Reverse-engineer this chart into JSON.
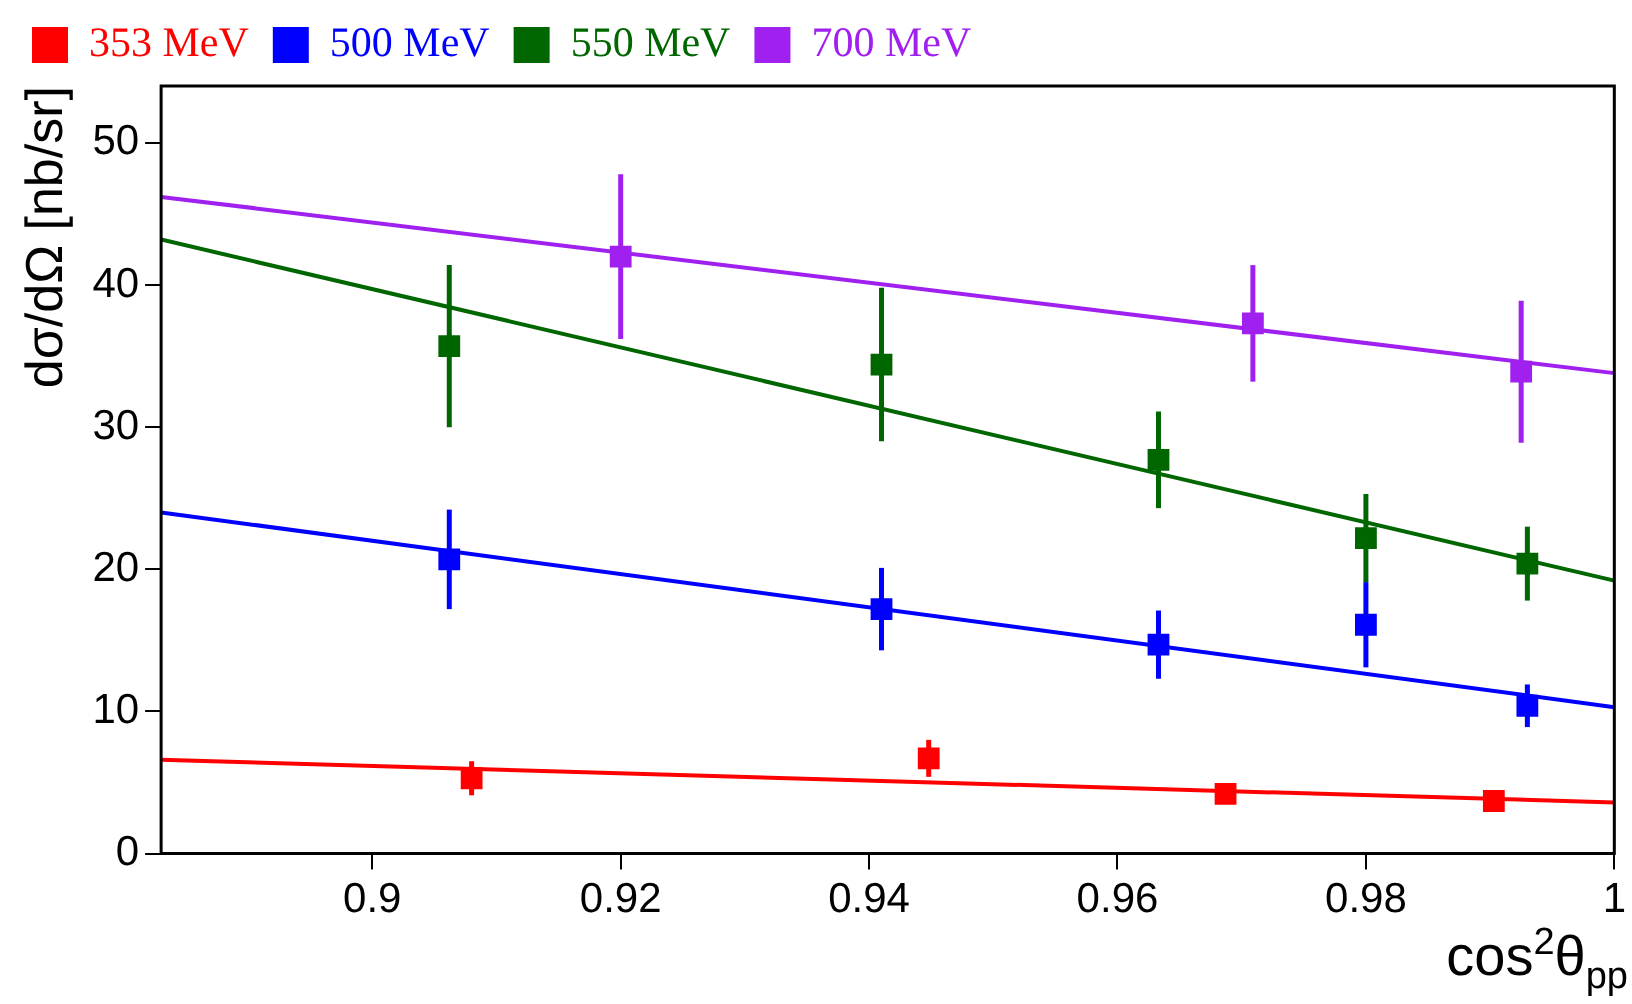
{
  "chart_data": {
    "type": "scatter",
    "xlabel": "cos$^{2}$θ$_{pp}$",
    "ylabel": "dσ/dΩ [nb/sr]",
    "xlim": [
      0.883,
      1
    ],
    "xticks": [
      0.9,
      0.92,
      0.94,
      0.96,
      0.98,
      1
    ],
    "ylim": [
      0,
      54
    ],
    "yticks": [
      0,
      10,
      20,
      30,
      40,
      50
    ],
    "grid": false,
    "legend": "top",
    "marker": "square",
    "series": [
      {
        "name": "353 MeV",
        "color": "#ff0000",
        "x": [
          0.908,
          0.9448,
          0.9687,
          0.9903
        ],
        "values": [
          5.3,
          6.7,
          4.2,
          3.7
        ],
        "errors": [
          1.2,
          1.3,
          0.6,
          0.4
        ]
      },
      {
        "name": "500 MeV",
        "color": "#0000ff",
        "x": [
          0.9062,
          0.941,
          0.9633,
          0.98,
          0.993
        ],
        "values": [
          20.7,
          17.2,
          14.7,
          16.1,
          10.4
        ],
        "errors": [
          3.5,
          2.9,
          2.4,
          3.0,
          1.5
        ]
      },
      {
        "name": "550 MeV",
        "color": "#006600",
        "x": [
          0.9062,
          0.941,
          0.9633,
          0.98,
          0.993
        ],
        "values": [
          35.7,
          34.4,
          27.7,
          22.2,
          20.4
        ],
        "errors": [
          5.7,
          5.4,
          3.4,
          3.1,
          2.6
        ]
      },
      {
        "name": "700 MeV",
        "color": "#a020f0",
        "x": [
          0.92,
          0.9709,
          0.9925
        ],
        "values": [
          42.0,
          37.3,
          33.9
        ],
        "errors": [
          5.8,
          4.1,
          5.0
        ]
      },
      {
        "type": "line",
        "marker": "none",
        "color": "#ff0000",
        "x": [
          0.883,
          1
        ],
        "values": [
          6.6,
          3.6
        ]
      },
      {
        "type": "line",
        "marker": "none",
        "color": "#0000ff",
        "x": [
          0.883,
          1
        ],
        "values": [
          24.0,
          10.3
        ]
      },
      {
        "type": "line",
        "marker": "none",
        "color": "#006600",
        "x": [
          0.883,
          1
        ],
        "values": [
          43.2,
          19.2
        ]
      },
      {
        "type": "line",
        "marker": "none",
        "color": "#a020f0",
        "x": [
          0.883,
          1
        ],
        "values": [
          46.2,
          33.8
        ]
      }
    ]
  }
}
